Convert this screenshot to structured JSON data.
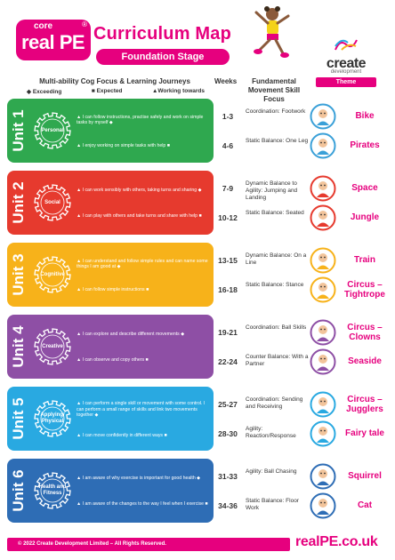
{
  "brand": {
    "core": "core",
    "name": "real PE",
    "reg": "®"
  },
  "title": "Curriculum Map",
  "stage": "Foundation Stage",
  "partner": {
    "name": "create",
    "sub": "development"
  },
  "headers": {
    "focus": "Multi-ability Cog Focus & Learning Journeys",
    "weeks": "Weeks",
    "fms": "Fundamental Movement Skill Focus",
    "theme": "Theme"
  },
  "legend": [
    {
      "symbol": "◆",
      "label": "Exceeding"
    },
    {
      "symbol": "■",
      "label": "Expected"
    },
    {
      "symbol": "▲",
      "label": "Working towards"
    }
  ],
  "units": [
    {
      "label": "Unit 1",
      "cog": "Personal",
      "color": "#2fa84f",
      "statements": [
        "▲ I can follow instructions, practise safely and work on simple tasks by myself ◆",
        "▲ I enjoy working on simple tasks with help ■"
      ],
      "rows": [
        {
          "weeks": "1-3",
          "fms": "Coordination: Footwork",
          "theme": "Bike",
          "icon": "bike-icon",
          "iconColor": "#3aa0d8"
        },
        {
          "weeks": "4-6",
          "fms": "Static Balance: One Leg",
          "theme": "Pirates",
          "icon": "pirate-icon",
          "iconColor": "#3aa0d8"
        }
      ]
    },
    {
      "label": "Unit 2",
      "cog": "Social",
      "color": "#e63a2e",
      "statements": [
        "▲ I can work sensibly with others, taking turns and sharing ◆",
        "▲ I can play with others and take turns and share with help ■"
      ],
      "rows": [
        {
          "weeks": "7-9",
          "fms": "Dynamic Balance to Agility: Jumping and Landing",
          "theme": "Space",
          "icon": "astronaut-icon",
          "iconColor": "#e63a2e"
        },
        {
          "weeks": "10-12",
          "fms": "Static Balance: Seated",
          "theme": "Jungle",
          "icon": "monkey-icon",
          "iconColor": "#e63a2e"
        }
      ]
    },
    {
      "label": "Unit 3",
      "cog": "Cognitive",
      "color": "#f7b21a",
      "statements": [
        "▲ I can understand and follow simple rules and can name some things I am good at ◆",
        "▲ I can follow simple instructions ■"
      ],
      "rows": [
        {
          "weeks": "13-15",
          "fms": "Dynamic Balance: On a Line",
          "theme": "Train",
          "icon": "train-icon",
          "iconColor": "#f7b21a"
        },
        {
          "weeks": "16-18",
          "fms": "Static Balance: Stance",
          "theme": "Circus – Tightrope",
          "icon": "tightrope-icon",
          "iconColor": "#f7b21a"
        }
      ]
    },
    {
      "label": "Unit 4",
      "cog": "Creative",
      "color": "#8e4fa5",
      "statements": [
        "▲ I can explore and describe different movements ◆",
        "▲ I can observe and copy others ■"
      ],
      "rows": [
        {
          "weeks": "19-21",
          "fms": "Coordination: Ball Skills",
          "theme": "Circus – Clowns",
          "icon": "clown-icon",
          "iconColor": "#8e4fa5"
        },
        {
          "weeks": "22-24",
          "fms": "Counter Balance: With a Partner",
          "theme": "Seaside",
          "icon": "seaside-icon",
          "iconColor": "#8e4fa5"
        }
      ]
    },
    {
      "label": "Unit 5",
      "cog": "Applying/ Physical",
      "color": "#29a9e1",
      "statements": [
        "▲ I can perform a single skill or movement with some control. I can perform a small range of skills and link two movements together ◆",
        "▲ I can move confidently in different ways ■"
      ],
      "rows": [
        {
          "weeks": "25-27",
          "fms": "Coordination: Sending and Receiving",
          "theme": "Circus – Jugglers",
          "icon": "juggler-icon",
          "iconColor": "#29a9e1"
        },
        {
          "weeks": "28-30",
          "fms": "Agility: Reaction/Response",
          "theme": "Fairy tale",
          "icon": "fairy-icon",
          "iconColor": "#29a9e1"
        }
      ]
    },
    {
      "label": "Unit 6",
      "cog": "Health and Fitness",
      "color": "#2e6db5",
      "statements": [
        "▲ I am aware of why exercise is important for good health ◆",
        "▲ I am aware of the changes to the way I feel when I exercise ■"
      ],
      "rows": [
        {
          "weeks": "31-33",
          "fms": "Agility: Ball Chasing",
          "theme": "Squirrel",
          "icon": "squirrel-icon",
          "iconColor": "#2e6db5"
        },
        {
          "weeks": "34-36",
          "fms": "Static Balance: Floor Work",
          "theme": "Cat",
          "icon": "cat-icon",
          "iconColor": "#2e6db5"
        }
      ]
    }
  ],
  "footer": {
    "copyright": "© 2022 Create Development Limited – All Rights Reserved.",
    "url": "realPE.co.uk"
  }
}
